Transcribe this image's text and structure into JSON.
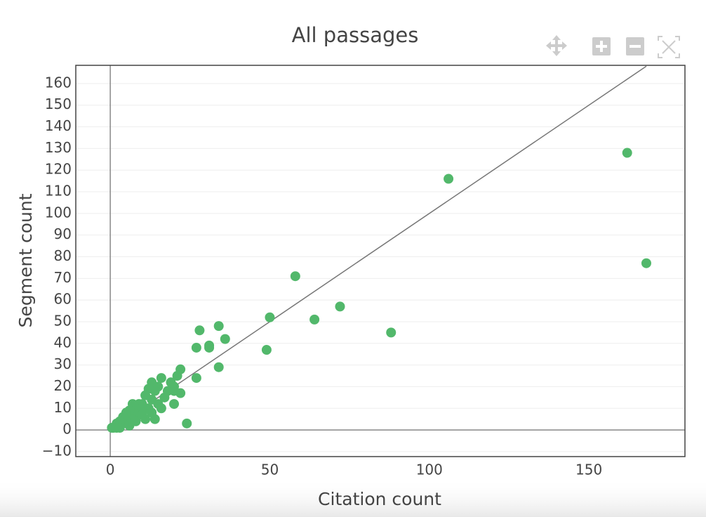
{
  "chart_data": {
    "type": "scatter",
    "title": "All passages",
    "x_label": "Citation count",
    "y_label": "Segment count",
    "color": "#52b86b",
    "x": [
      162,
      168,
      106,
      88,
      72,
      64,
      58,
      50,
      49,
      36,
      34,
      34,
      31,
      31,
      28,
      27,
      27,
      24,
      22,
      22,
      21,
      20,
      20,
      19,
      18,
      17,
      16,
      16,
      15,
      14,
      14,
      13,
      13,
      12,
      12,
      11,
      11,
      10,
      10,
      9,
      8,
      8,
      7,
      7,
      6,
      6,
      5,
      5,
      4,
      4,
      3,
      3,
      2,
      2,
      1,
      0.5,
      3,
      8,
      10,
      15,
      13,
      20
    ],
    "values": [
      128,
      77,
      116,
      45,
      57,
      51,
      71,
      52,
      37,
      42,
      48,
      29,
      39,
      38,
      46,
      38,
      24,
      3,
      28,
      17,
      25,
      12,
      20,
      22,
      18,
      15,
      24,
      10,
      20,
      5,
      18,
      22,
      14,
      19,
      10,
      16,
      5,
      12,
      8,
      12,
      10,
      7,
      12,
      5,
      9,
      2,
      8,
      4,
      6,
      3,
      2,
      4,
      1,
      3,
      1,
      1,
      1,
      4,
      7,
      12,
      8,
      18
    ],
    "reference_line": {
      "x": [
        0,
        168
      ],
      "values": [
        0,
        168
      ],
      "color": "#777777"
    },
    "xlim": [
      -10.8,
      180.1
    ],
    "ylim": [
      -12.3,
      168.4
    ],
    "xticks": [
      0,
      50,
      100,
      150
    ],
    "yticks": [
      {
        "value": -10,
        "label": "−10"
      },
      0,
      10,
      20,
      30,
      40,
      50,
      60,
      70,
      80,
      90,
      100,
      110,
      120,
      130,
      140,
      150,
      160
    ],
    "grid": true
  }
}
